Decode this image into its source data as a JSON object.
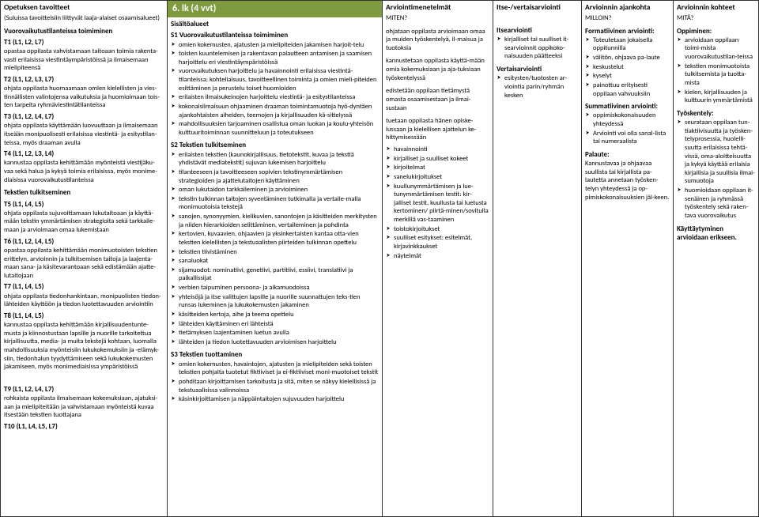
{
  "colors": {
    "header_bg": "#7e9b40",
    "header_fg": "#ffffff",
    "border": "#333333",
    "text": "#000000"
  },
  "col1": {
    "title": "Opetuksen tavoitteet",
    "subtitle": "(Suluissa tavoitteisiin liittyvät laaja-alaiset osaamisalueet)",
    "h1": "Vuorovaikutustilanteissa toimiminen",
    "t1_code": "T1 (L1, L2, L7)",
    "t1_body": "opastaa oppilasta vahvistamaan taitoaan toimia rakenta-vasti erilaisissa viestintäympäristöissä ja ilmaisemaan mielipiteensä",
    "t2_code": "T2 (L1, L2, L3, L7)",
    "t2_body": "ohjata oppilasta huomaamaan omien kielellisten ja vies-tinnällisten valintojensa vaikutuksia ja huomioimaan tois-ten tarpeita ryhmäviestintätilanteissa",
    "t3_code": "T3 (L1, L2, L4, L7)",
    "t3_body": "ohjata oppilasta käyttämään luovuuttaan ja ilmaisemaan itseään monipuolisesti erilaisissa viestintä- ja esitystilan-teissa, myös draaman avulla",
    "t4_code": "T4 (L1, L2, L3, L4)",
    "t4_body": "kannustaa oppilasta kehittämään myönteistä viestijäku-vaa sekä halua ja kykyä toimia erilaisissa, myös monime-diaisissa vuorovaikutustilanteissa",
    "h2": "Tekstien tulkitseminen",
    "t5_code": "T5 (L1, L4, L5)",
    "t5_body": "ohjata oppilasta sujuvoittamaan lukutaitoaan ja käyttä-mään tekstin ymmärtämisen strategioita sekä tarkkaile-maan ja arvioimaan omaa lukemistaan",
    "t6_code": "T6 (L1, L2, L4, L5)",
    "t6_body": "opastaa oppilasta kehittämään monimuotoisten tekstien erittelyn, arvioinnin ja tulkitsemisen taitoja ja laajenta-maan sana- ja käsitevarantoaan sekä edistämään ajatte-lutaitojaan",
    "t7_code": "T7 (L1, L4, L5)",
    "t7_body": "ohjata oppilasta tiedonhankintaan, monipuolisten tiedon-lähteiden käyttöön ja tiedon luotettavuuden arviointiin",
    "t8_code": "T8 (L1, L4, L5)",
    "t8_body": "kannustaa oppilasta kehittämään kirjallisuudentunte-musta ja kiinnostustaan lapsille ja nuorille tarkoitettua kirjallisuutta, media- ja muita tekstejä kohtaan, luomalla mahdollisuuksia myönteisiin lukukokemuksiin ja -elämyk-siin, tiedonhalun tyydyttämiseen sekä lukukokemusten jakamiseen, myös monimediaisissa ympäristöissä",
    "t9_code": "T9 (L1, L2, L4, L7)",
    "t9_body": "rohkaista oppilasta ilmaisemaan kokemuksiaan, ajatuksi-aan ja mielipiteitään ja vahvistamaan myönteistä kuvaa itsestään tekstien tuottajana",
    "t10_code": "T10 (L1, L4, L5, L7)"
  },
  "col2": {
    "title": "6. lk (4 vvt)",
    "subhead": "Sisältöalueet",
    "s1_title": "S1 Vuorovaikutustilanteissa toimiminen",
    "s1_items": [
      "omien kokemusten, ajatusten ja mielipiteiden jakamisen harjoit-telu",
      "toisten kuuntelemisen ja rakentavan palautteen antamisen ja saamisen harjoittelu eri viestintäympäristöissä",
      "vuorovaikutuksen harjoittelu ja havainnointi erilaisissa viestintä-tilanteissa; kohteliaisuus, tavoitteellinen toiminta ja omien mieli-piteiden esittäminen ja perustelu toiset huomioiden",
      "erilaisten ilmaisukeinojen harjoittelu viestintä- ja esitystilanteissa",
      "kokonaisilmaisuun ohjaaminen draaman toimintamuotoja hyö-dyntäen ajankohtaisten aiheiden, teemojen ja kirjallisuuden kä-sittelyssä",
      "mahdollisuuksien tarjoaminen osallistua oman luokan ja koulu-yhteisön kulttuuritoiminnan suunnitteluun ja toteutukseen"
    ],
    "s2_title": "S2 Tekstien tulkitseminen",
    "s2_items": [
      "erilaisten tekstien (kaunokirjallisuus, tietotekstit, kuvaa ja tekstiä yhdistävät mediatekstit) sujuvan lukemisen harjoittelu",
      "tilanteeseen ja tavoitteeseen sopivien tekstinymmärtämisen strategioiden ja ajattelutaitojen käyttäminen",
      "oman lukutaidon tarkkaileminen ja arvioiminen",
      "tekstin tulkinnan taitojen syventäminen tutkimalla ja vertaile-malla monimuotoisia tekstejä",
      "sanojen, synonyymien, kielikuvien, sanontojen ja käsitteiden merkitysten ja niiden hierarkioiden selittäminen, vertaileminen ja pohdinta",
      "kertovien, kuvaavien, ohjaavien ja yksinkertaisten kantaa otta-vien tekstien kielellisten ja tekstuaalisten piirteiden tulkinnan opettelu",
      "tekstien tiivistäminen",
      "sanaluokat",
      "sijamuodot: nominatiivi, genetiivi, partitiivi, essiivi, translatiivi ja paikallissijat",
      "verbien taipuminen persoona- ja aikamuodoissa",
      "yhteisöjä ja itse valittujen lapsille ja nuorille suunnattujen teks-tien runsas lukeminen ja lukukokemusten jakaminen",
      "käsitteiden kertoja, aihe ja teema opettelu",
      "lähteiden käyttäminen eri lähteistä",
      "tietämyksen laajentaminen luetun avulla",
      "lähteiden ja tiedon luotettavuuden arvioimisen harjoittelu"
    ],
    "s3_title": "S3 Tekstien tuottaminen",
    "s3_items": [
      "omien kokemusten, havaintojen, ajatusten ja mielipiteiden sekä toisten tekstien pohjalta tuotetut fiktiiviset ja ei-fiktiiviset moni-muotoiset tekstit",
      "pohditaan kirjoittamisen tarkoitusta ja sitä, miten se näkyy kielellisissä ja tekstuaalisissa valinnoissa",
      "käsinkirjoittamisen ja näppäintaitojen sujuvuuden harjoittelu"
    ]
  },
  "col3": {
    "title": "Arviointimenetelmät",
    "subtitle": "MITEN?",
    "p1": "ohjataan oppilasta arvioimaan omaa ja muiden työskentelyä, il-maisua ja tuotoksia",
    "p2": "kannustetaan oppilasta käyttä-mään omia kokemuksiaan ja aja-tuksiaan työskentelyssä",
    "p3": "edistetään oppilaan tietämystä omasta osaamisestaan ja ilmai-sustaan",
    "p4": "tuetaan oppilasta hänen opiske-lussaan ja kielellisen ajattelun ke-hittymisessään",
    "items": [
      "havainnointi",
      "kirjalliset ja suulliset kokeet",
      "kirjoitelmat",
      "sanelukirjoitukset",
      "kuullunymmärtämisen ja lue-tunymmärtämisen testit: kir-jalliset testit, kuullusta tai luetusta kertominen/ piirtä-minen/sovitulla merkillä vas-taaminen",
      "toistokirjoitukset",
      "suulliset esitykset: esitelmät, kirjavinkkaukset",
      "näytelmät"
    ]
  },
  "col4": {
    "title": "Itse-/vertaisarviointi",
    "h1": "Itsearviointi",
    "i1": [
      "kirjalliset tai suulliset it-searvioinnit oppikoko-naisuuden päätteeksi"
    ],
    "h2": "Vertaisarviointi",
    "i2": [
      "esitysten/tuotosten ar-viointia parin/ryhmän kesken"
    ]
  },
  "col5": {
    "title": "Arvioinnin ajankohta",
    "subtitle": "MILLOIN?",
    "h1": "Formatiivinen arviointi:",
    "i1": [
      "Toteutetaan jokaisella oppitunnilla",
      "välitön, ohjaava pa-laute",
      "keskustelut",
      "kyselyt",
      "painottuu erityisesti oppilaan vahvuuksiin"
    ],
    "h2": "Summatiivinen arviointi:",
    "i2": [
      "oppimiskokonaisuuden yhteydessä",
      "Arviointi voi olla sanal-lista tai numeraalista"
    ],
    "h3": "Palaute:",
    "p3": "Kannustavaa ja ohjaavaa suullista tai kirjallista pa-lautetta annetaan työsken-telyn yhteydessä ja op-pimiskokonaisuuksien jäl-keen."
  },
  "col6": {
    "title": "Arvioinnin kohteet",
    "subtitle": "MITÄ?",
    "h1": "Oppiminen:",
    "i1": [
      "arvioidaan oppilaan toimi-mista vuorovaikutustilan-teissa",
      "tekstien monimuotoista tulkitsemista ja tuotta-mista",
      "kielen, kirjallisuuden ja kulttuurin ymmärtämistä"
    ],
    "h2": "Työskentely:",
    "i2": [
      "seurataan oppilaan tun-tiaktiivisuutta ja työsken-telyprosessia, huolelli-suutta erilaisissa tehtä-vissä, oma-aloitteisuutta ja kykyä käyttää erilaisia kirjallisia ja suullisia ilmai-sumuotoja",
      "huomioidaan oppilaan it-senäinen ja ryhmässä työskentely sekä raken-tava vuorovaikutus"
    ],
    "h3": "Käyttäytyminen arvioidaan erikseen."
  }
}
